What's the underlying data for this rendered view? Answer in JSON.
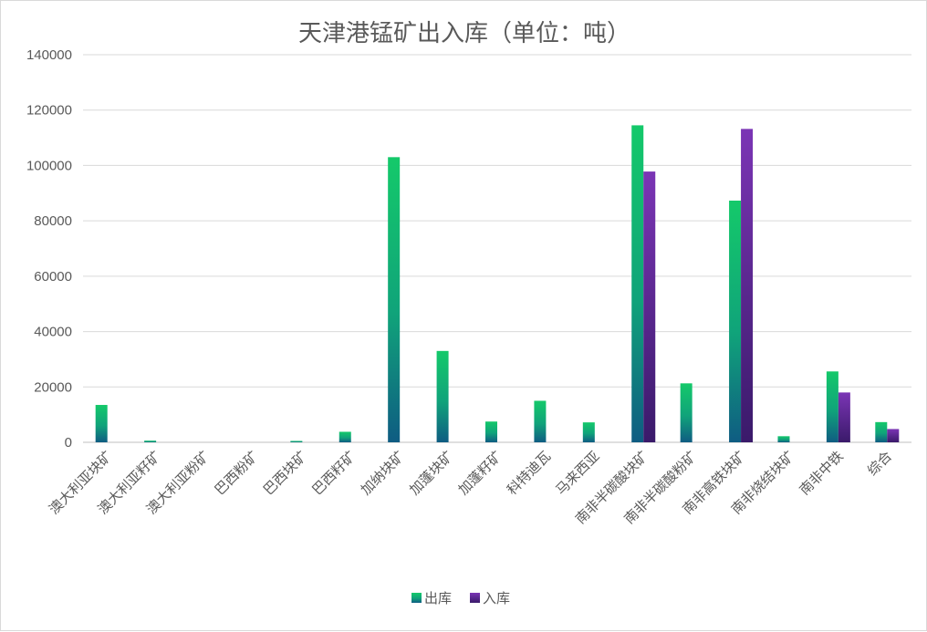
{
  "chart_data": {
    "type": "bar",
    "title": "天津港锰矿出入库（单位：吨）",
    "xlabel": "",
    "ylabel": "",
    "ylim": [
      0,
      140000
    ],
    "yticks": [
      "0",
      "20000",
      "40000",
      "60000",
      "80000",
      "100000",
      "120000",
      "140000"
    ],
    "grid": true,
    "legend_position": "bottom",
    "categories": [
      "澳大利亚块矿",
      "澳大利亚籽矿",
      "澳大利亚粉矿",
      "巴西粉矿",
      "巴西块矿",
      "巴西籽矿",
      "加纳块矿",
      "加蓬块矿",
      "加蓬籽矿",
      "科特迪瓦",
      "马来西亚",
      "南非半碳酸块矿",
      "南非半碳酸粉矿",
      "南非高铁块矿",
      "南非烧结块矿",
      "南非中铁",
      "综合"
    ],
    "series": [
      {
        "name": "出库",
        "color_top": "#14c96a",
        "color_bottom": "#0f5c82",
        "values": [
          13500,
          600,
          0,
          0,
          500,
          3800,
          103000,
          33000,
          7500,
          15000,
          7200,
          114500,
          21300,
          87300,
          2200,
          25600,
          7300
        ]
      },
      {
        "name": "入库",
        "color_top": "#7b35b5",
        "color_bottom": "#3a1a6a",
        "values": [
          0,
          0,
          0,
          0,
          0,
          0,
          0,
          0,
          0,
          0,
          0,
          97800,
          0,
          113200,
          0,
          18000,
          4800
        ]
      }
    ]
  }
}
